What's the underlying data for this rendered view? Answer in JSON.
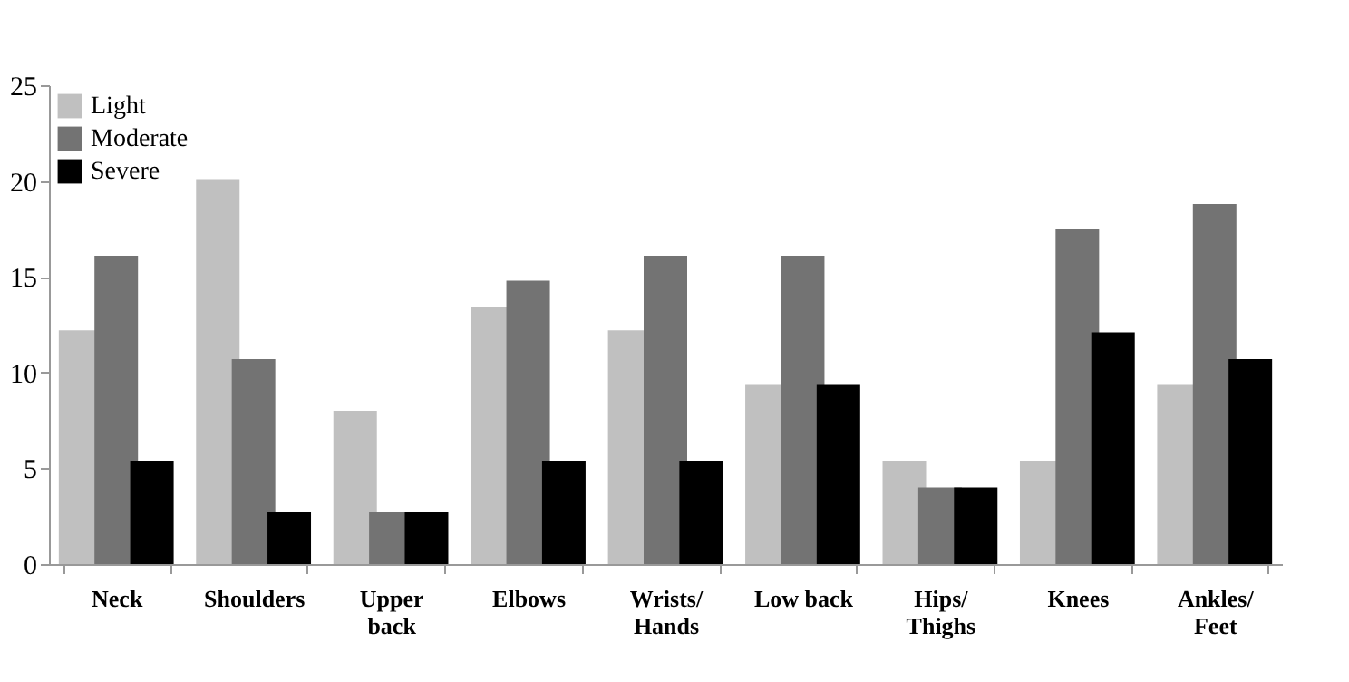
{
  "chart_data": {
    "type": "bar",
    "categories": [
      "Neck",
      "Shoulders",
      "Upper\nback",
      "Elbows",
      "Wrists/\nHands",
      "Low back",
      "Hips/\nThighs",
      "Knees",
      "Ankles/\nFeet"
    ],
    "series": [
      {
        "name": "Light",
        "color": "#c0c0c0",
        "values": [
          12.2,
          20.1,
          8.0,
          13.4,
          12.2,
          9.4,
          5.4,
          5.4,
          9.4
        ]
      },
      {
        "name": "Moderate",
        "color": "#737373",
        "values": [
          16.1,
          10.7,
          2.7,
          14.8,
          16.1,
          16.1,
          4.0,
          17.5,
          18.8
        ]
      },
      {
        "name": "Severe",
        "color": "#000000",
        "values": [
          5.4,
          2.7,
          2.7,
          5.4,
          5.4,
          9.4,
          4.0,
          12.1,
          10.7
        ]
      }
    ],
    "ylim": [
      0,
      25
    ],
    "yticks": [
      0,
      5,
      10,
      15,
      20,
      25
    ],
    "grid": false,
    "legend": "top left"
  }
}
